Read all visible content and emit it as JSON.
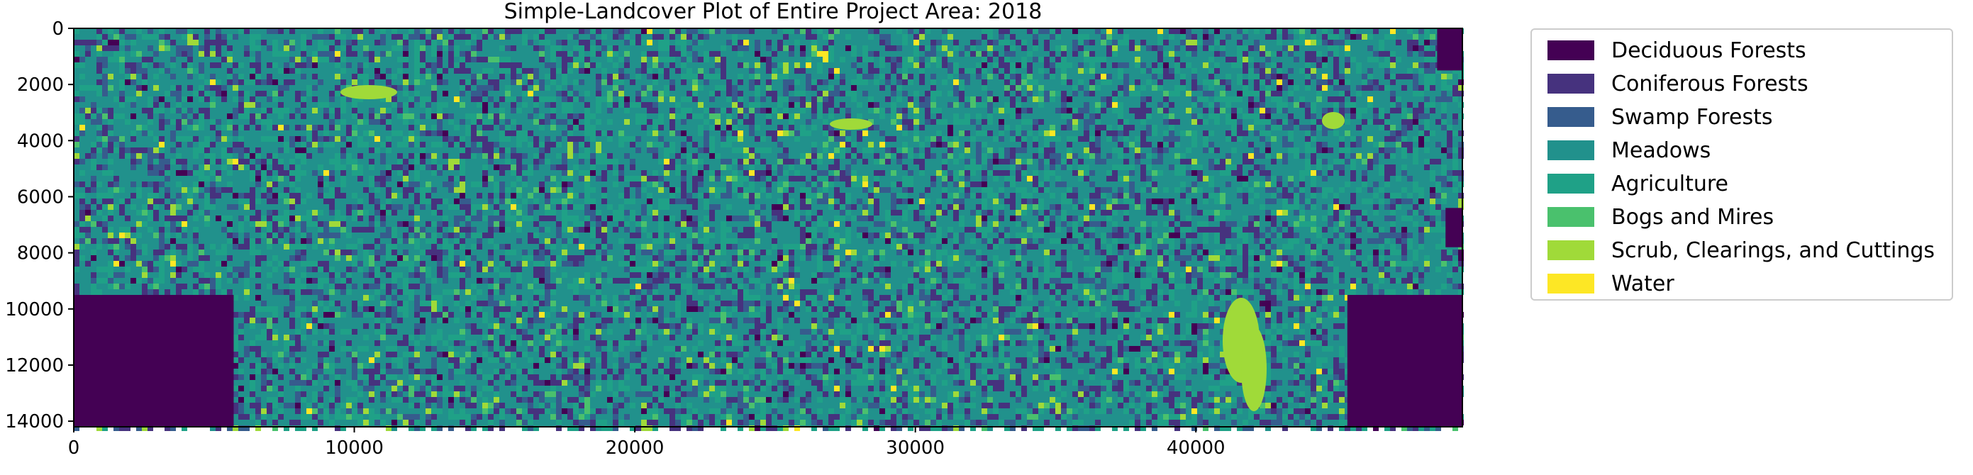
{
  "chart_data": {
    "type": "heatmap",
    "title": "Simple-Landcover Plot of Entire Project Area: 2018",
    "xlabel": "",
    "ylabel": "",
    "xlim": [
      0,
      49500
    ],
    "ylim": [
      14200,
      0
    ],
    "x_ticks": [
      0,
      10000,
      20000,
      30000,
      40000
    ],
    "y_ticks": [
      0,
      2000,
      4000,
      6000,
      8000,
      10000,
      12000,
      14000
    ],
    "grid": false,
    "legend_position": "outside-right",
    "colormap": "viridis",
    "classes": [
      {
        "name": "Deciduous Forests",
        "color": "#440154"
      },
      {
        "name": "Coniferous Forests",
        "color": "#46327e"
      },
      {
        "name": "Swamp Forests",
        "color": "#365c8d"
      },
      {
        "name": "Meadows",
        "color": "#21918c"
      },
      {
        "name": "Agriculture",
        "color": "#1fa187"
      },
      {
        "name": "Bogs and Mires",
        "color": "#4ac16d"
      },
      {
        "name": "Scrub, Clearings, and Cuttings",
        "color": "#a0da39"
      },
      {
        "name": "Water",
        "color": "#fde725"
      }
    ],
    "masked_regions_class": "Deciduous Forests"
  }
}
